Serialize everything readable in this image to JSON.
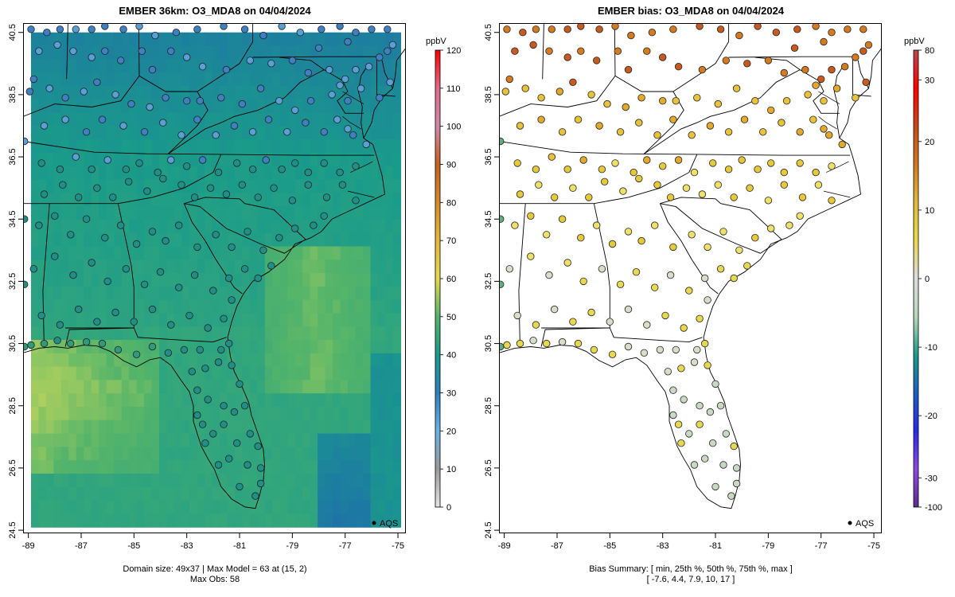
{
  "left_panel": {
    "title": "EMBER 36km: O3_MDA8 on 04/04/2024",
    "footer_line1": "Domain size: 49x37 | Max Model = 63 at (15, 2)",
    "footer_line2": "Max Obs: 58",
    "legend_marker": "AQS",
    "colorbar_unit": "ppbV",
    "colorbar_ticks": [
      "0",
      "10",
      "20",
      "30",
      "40",
      "50",
      "60",
      "70",
      "80",
      "90",
      "100",
      "110",
      "120"
    ]
  },
  "right_panel": {
    "title": "EMBER bias: O3_MDA8 on 04/04/2024",
    "footer_line1": "Bias Summary: [ min, 25th %, 50th %, 75th %, max ]",
    "footer_line2": "[ -7.6,   4.4,   7.9,   10,   17 ]",
    "legend_marker": "AQS",
    "colorbar_unit": "ppbV",
    "colorbar_ticks": [
      "-100",
      "-30",
      "-20",
      "-10",
      "0",
      "10",
      "20",
      "30",
      "80"
    ]
  },
  "axes": {
    "x_ticks": [
      "-89",
      "-87",
      "-85",
      "-83",
      "-81",
      "-79",
      "-77",
      "-75"
    ],
    "y_ticks": [
      "24.5",
      "26.5",
      "28.5",
      "30.5",
      "32.5",
      "34.5",
      "36.5",
      "38.5",
      "40.5"
    ]
  },
  "map_data": {
    "lon_range": [
      -89.2,
      -74.7
    ],
    "lat_range": [
      24.4,
      40.8
    ],
    "bias_summary": {
      "min": -7.6,
      "p25": 4.4,
      "p50": 7.9,
      "p75": 10,
      "max": 17
    },
    "max_model": 63,
    "max_obs": 58,
    "domain_size": "49x37"
  },
  "colors": {
    "conc_scale": [
      "#e6e6e6",
      "#9a9a9a",
      "#6bb2e6",
      "#2f7fbf",
      "#1a9b8a",
      "#55b46a",
      "#e4d84f",
      "#e4b93b",
      "#d68a2a",
      "#c8601e",
      "#d088a8",
      "#e46a8a",
      "#ff0000"
    ],
    "bias_scale": [
      "#5b2c8f",
      "#8a4be0",
      "#2a2ae6",
      "#1c5fbf",
      "#1a9b8a",
      "#b8d8b8",
      "#dcdcdc",
      "#e8d850",
      "#e4b93b",
      "#d07a20",
      "#c84a1a",
      "#ff0000",
      "#b8484e"
    ]
  }
}
